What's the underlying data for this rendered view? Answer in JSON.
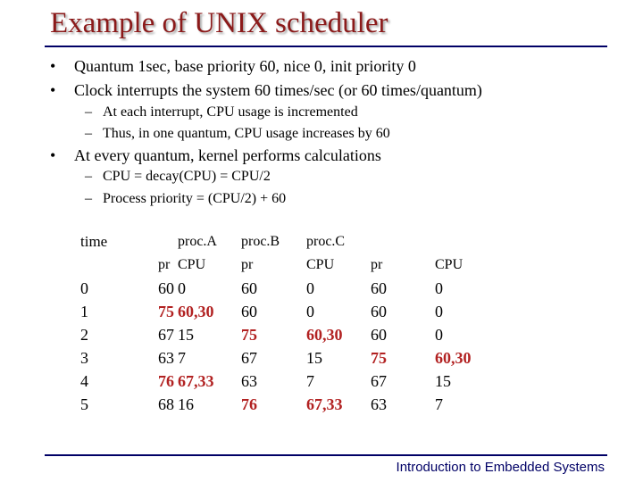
{
  "title": "Example of UNIX scheduler",
  "bullets": [
    {
      "text": "Quantum 1sec, base priority 60, nice 0, init priority 0",
      "sub": []
    },
    {
      "text": "Clock interrupts the system 60 times/sec (or 60 times/quantum)",
      "sub": [
        "At each interrupt, CPU usage is incremented",
        "Thus, in one quantum, CPU usage increases by 60"
      ]
    },
    {
      "text": "At every quantum, kernel performs calculations",
      "sub": [
        "CPU = decay(CPU) = CPU/2",
        "Process priority = (CPU/2) + 60"
      ]
    }
  ],
  "table": {
    "header_row1": [
      "time",
      "",
      "proc.A",
      "proc.B",
      "proc.C",
      "",
      ""
    ],
    "header_row2": [
      "",
      "pr",
      "CPU",
      "pr",
      "CPU",
      "pr",
      "CPU"
    ],
    "rows": [
      [
        "0",
        "60",
        "0",
        "60",
        "0",
        "60",
        "0"
      ],
      [
        "1",
        "75",
        "60,30",
        "60",
        "0",
        "60",
        "0"
      ],
      [
        "2",
        "67",
        "15",
        "75",
        "60,30",
        "60",
        "0"
      ],
      [
        "3",
        "63",
        "7",
        "67",
        "15",
        "75",
        "60,30"
      ],
      [
        "4",
        "76",
        "67,33",
        "63",
        "7",
        "67",
        "15"
      ],
      [
        "5",
        "68",
        "16",
        "76",
        "67,33",
        "63",
        "7"
      ]
    ],
    "highlight_color": "#b22222"
  },
  "footer": "Introduction to Embedded Systems"
}
